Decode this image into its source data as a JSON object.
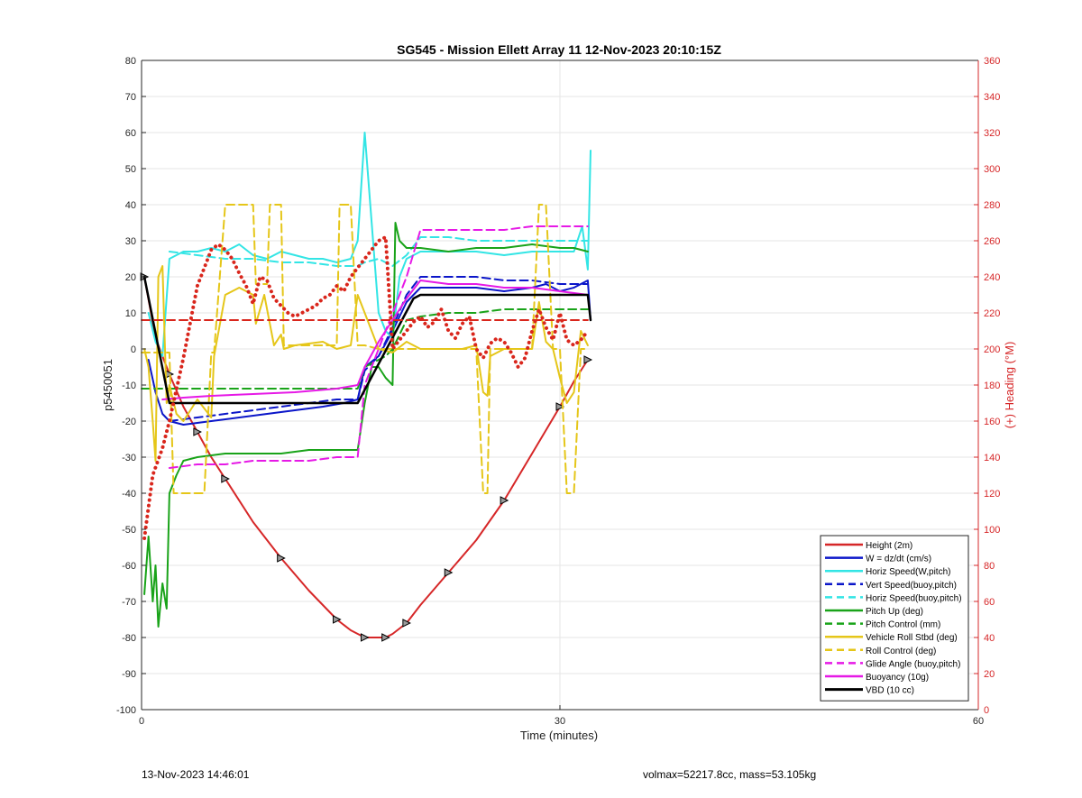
{
  "chart_data": {
    "type": "line",
    "title": "SG545 - Mission Ellett Array 11 12-Nov-2023 20:10:15Z",
    "xlabel": "Time (minutes)",
    "ylabel": "p5450051",
    "ylabel_right": "(+) Heading (°M)",
    "xlim": [
      0,
      60
    ],
    "ylim": [
      -100,
      80
    ],
    "ylim_right": [
      0,
      360
    ],
    "x_ticks": [
      "0",
      "30",
      "60"
    ],
    "y_ticks": [
      "80",
      "70",
      "60",
      "50",
      "40",
      "30",
      "20",
      "10",
      "0",
      "-10",
      "-20",
      "-30",
      "-40",
      "-50",
      "-60",
      "-70",
      "-80",
      "-90",
      "-100"
    ],
    "y_ticks_right": [
      "360",
      "340",
      "320",
      "300",
      "280",
      "260",
      "240",
      "220",
      "200",
      "180",
      "160",
      "140",
      "120",
      "100",
      "80",
      "60",
      "40",
      "20",
      "0"
    ],
    "grid": true,
    "legend_position": "bottom-right",
    "colors": {
      "height": "#d62728",
      "w": "#0b16c9",
      "horiz": "#33e5e5",
      "pitch": "#19a319",
      "roll": "#e5c619",
      "glide": "#e619e6",
      "buoy": "#e619e6",
      "vbd": "#000000",
      "heading": "#d9261c",
      "axis_right": "#d62728"
    },
    "series": [
      {
        "name": "Height (2m)",
        "style": "solid",
        "color": "#d62728",
        "width": 2,
        "marker": "triangle",
        "x": [
          0.2,
          1,
          2,
          3,
          4,
          5,
          6,
          8,
          10,
          12,
          14,
          15,
          16,
          17,
          17.5,
          18,
          19,
          20,
          22,
          24,
          26,
          28,
          30,
          31,
          32
        ],
        "y": [
          20,
          3,
          -7,
          -16,
          -23,
          -30,
          -36,
          -48,
          -58,
          -67,
          -75,
          -78,
          -80,
          -80,
          -80,
          -79,
          -76,
          -71,
          -62,
          -53,
          -42,
          -29,
          -16,
          -9,
          -3
        ]
      },
      {
        "name": "W = dz/dt (cm/s)",
        "style": "solid",
        "color": "#0b16c9",
        "width": 2,
        "x": [
          0.5,
          1,
          1.5,
          2,
          3,
          5,
          7,
          9,
          11,
          13,
          14.5,
          15.5,
          16,
          17,
          18,
          19,
          20,
          22,
          24,
          26,
          28,
          29,
          30,
          31,
          32,
          32.2
        ],
        "y": [
          -3,
          -12,
          -18,
          -20,
          -21,
          -20,
          -19,
          -18,
          -17,
          -16,
          -15,
          -14,
          -5,
          -2,
          5,
          13,
          17,
          17,
          17,
          16,
          17,
          18,
          16,
          17,
          19,
          8
        ]
      },
      {
        "name": "Horiz Speed(W,pitch)",
        "style": "solid",
        "color": "#33e5e5",
        "width": 2,
        "x": [
          0.5,
          1,
          1.5,
          2,
          3,
          4,
          5,
          6,
          7,
          8,
          9,
          10,
          11,
          12,
          13,
          14,
          15,
          15.5,
          16,
          16.5,
          17,
          17.5,
          18,
          18.5,
          19,
          20,
          22,
          24,
          26,
          28,
          30,
          31,
          31.6,
          32,
          32.2
        ],
        "y": [
          10,
          2,
          -2,
          25,
          27,
          27,
          28,
          27,
          29,
          26,
          25,
          27,
          26,
          25,
          25,
          24,
          25,
          30,
          60,
          35,
          10,
          5,
          3,
          20,
          25,
          27,
          27,
          27,
          26,
          27,
          27,
          27,
          34,
          22,
          55
        ]
      },
      {
        "name": "Vert Speed(buoy,pitch)",
        "style": "dashed",
        "color": "#0b16c9",
        "width": 2,
        "x": [
          2,
          4,
          6,
          8,
          10,
          12,
          14,
          15.5,
          16,
          17,
          18,
          19,
          20,
          22,
          24,
          26,
          28,
          30,
          32
        ],
        "y": [
          -20,
          -19,
          -18,
          -17,
          -16,
          -15,
          -14,
          -14,
          -6,
          -2,
          6,
          15,
          20,
          20,
          20,
          19,
          19,
          18,
          18
        ]
      },
      {
        "name": "Horiz Speed(buoy,pitch)",
        "style": "dashed",
        "color": "#33e5e5",
        "width": 2,
        "x": [
          2,
          4,
          6,
          8,
          10,
          12,
          14,
          15.5,
          16,
          17,
          18,
          19,
          20,
          22,
          24,
          26,
          28,
          30,
          32
        ],
        "y": [
          27,
          26,
          25,
          25,
          24,
          24,
          23,
          23,
          24,
          25,
          23,
          26,
          31,
          31,
          30,
          30,
          30,
          30,
          30
        ]
      },
      {
        "name": "Pitch Up (deg)",
        "style": "solid",
        "color": "#19a319",
        "width": 2,
        "x": [
          0.2,
          0.5,
          0.8,
          1,
          1.2,
          1.5,
          1.8,
          2,
          2.5,
          3,
          4,
          6,
          8,
          10,
          12,
          14,
          15.5,
          16,
          16.5,
          17,
          17.5,
          18,
          18.2,
          18.5,
          19,
          20,
          22,
          24,
          26,
          28,
          30,
          31,
          32
        ],
        "y": [
          -68,
          -52,
          -70,
          -60,
          -77,
          -65,
          -72,
          -40,
          -35,
          -31,
          -30,
          -29,
          -29,
          -29,
          -28,
          -28,
          -28,
          -15,
          -5,
          -5,
          -8,
          -10,
          35,
          30,
          28,
          28,
          27,
          28,
          28,
          29,
          28,
          28,
          27
        ]
      },
      {
        "name": "Pitch Control (mm)",
        "style": "dashed",
        "color": "#19a319",
        "width": 2,
        "x": [
          0,
          15.5,
          16,
          17,
          17.5,
          18,
          19,
          20,
          22,
          24,
          26,
          28,
          30,
          32
        ],
        "y": [
          -11,
          -11,
          -5,
          -3,
          -2,
          0,
          8,
          9,
          10,
          10,
          11,
          11,
          11,
          11
        ]
      },
      {
        "name": "Vehicle Roll Stbd (deg)",
        "style": "solid",
        "color": "#e5c619",
        "width": 2,
        "x": [
          0.2,
          0.5,
          0.8,
          1,
          1.2,
          1.5,
          1.8,
          2,
          2.5,
          3,
          4,
          5,
          5.2,
          6,
          7,
          8,
          8.2,
          8.8,
          9.5,
          10,
          10.2,
          11,
          13,
          14,
          15,
          15.5,
          16,
          17,
          18,
          19,
          20,
          22,
          23,
          24,
          24.5,
          24.8,
          25,
          26,
          27,
          28,
          28.5,
          29,
          29.5,
          30,
          30.5,
          31,
          31.5,
          32
        ],
        "y": [
          0,
          -5,
          -20,
          -31,
          20,
          23,
          -15,
          -10,
          -18,
          -20,
          -14,
          -19,
          -2,
          15,
          17,
          15,
          7,
          15,
          1,
          4,
          0,
          1,
          2,
          0,
          1,
          15,
          10,
          0,
          -1,
          2,
          0,
          0,
          0,
          1,
          -12,
          -13,
          -2,
          0,
          0,
          0,
          13,
          2,
          0,
          -8,
          -15,
          -12,
          5,
          1
        ]
      },
      {
        "name": "Roll Control (deg)",
        "style": "dashed",
        "color": "#e5c619",
        "width": 2,
        "x": [
          0,
          2,
          2.3,
          4,
          4.5,
          5,
          5.2,
          6,
          7,
          8,
          8.2,
          9,
          9.2,
          10,
          10.2,
          13,
          14,
          14.2,
          15,
          15.5,
          16,
          17,
          18,
          19,
          20,
          22,
          23,
          24,
          24.5,
          24.8,
          25,
          26,
          27,
          28,
          28.5,
          29,
          29.5,
          30,
          30.5,
          31,
          31.5,
          32
        ],
        "y": [
          -1,
          -1,
          -40,
          -40,
          -40,
          -1,
          -1,
          40,
          40,
          40,
          18,
          18,
          40,
          40,
          1,
          1,
          1,
          40,
          40,
          1,
          1,
          0,
          0,
          0,
          0,
          0,
          0,
          0,
          -40,
          -40,
          0,
          0,
          0,
          0,
          40,
          40,
          0,
          0,
          -40,
          -40,
          0,
          0
        ]
      },
      {
        "name": "Glide Angle (buoy,pitch)",
        "style": "dashed",
        "color": "#e619e6",
        "width": 2,
        "x": [
          2,
          4,
          6,
          8,
          10,
          12,
          14,
          15.5,
          16,
          17,
          18,
          19,
          20,
          22,
          24,
          26,
          28,
          30,
          31,
          32
        ],
        "y": [
          -33,
          -32,
          -32,
          -31,
          -31,
          -31,
          -30,
          -30,
          -10,
          0,
          10,
          20,
          33,
          33,
          33,
          33,
          34,
          34,
          34,
          34
        ]
      },
      {
        "name": "Buoyancy (10g)",
        "style": "solid",
        "color": "#e619e6",
        "width": 2,
        "x": [
          1.5,
          3,
          5,
          8,
          11,
          14,
          15.5,
          16,
          17,
          18,
          19,
          20,
          22,
          24,
          26,
          28,
          30,
          32
        ],
        "y": [
          -14,
          -13.5,
          -13,
          -12.5,
          -12,
          -11,
          -10,
          -5,
          2,
          8,
          14,
          19,
          18,
          18,
          17,
          17,
          16,
          15
        ]
      },
      {
        "name": "VBD (10 cc)",
        "style": "solid",
        "color": "#000000",
        "width": 2.5,
        "x": [
          0.2,
          2,
          15.5,
          19.5,
          20,
          32,
          32.2
        ],
        "y": [
          20,
          -15,
          -15,
          14,
          15,
          15,
          8
        ]
      },
      {
        "name": "",
        "style": "dashed",
        "color": "#d9261c",
        "width": 2,
        "x": [
          0,
          32
        ],
        "y": [
          8,
          8
        ]
      },
      {
        "name": "",
        "style": "dotted",
        "color": "#d9261c",
        "width": 2.5,
        "axis": "right",
        "x": [
          0.2,
          0.8,
          1.5,
          2,
          3,
          4,
          5,
          5.5,
          6,
          6.5,
          7,
          7.5,
          8,
          8.5,
          9,
          9.5,
          10,
          10.5,
          11,
          11.5,
          12,
          12.5,
          13,
          13.5,
          14,
          14.5,
          15,
          15.5,
          16,
          16.5,
          17,
          17.5,
          18,
          18.5,
          19,
          19.5,
          20,
          20.5,
          21,
          21.5,
          22,
          22.5,
          23,
          23.5,
          24,
          24.5,
          25,
          25.5,
          26,
          26.5,
          27,
          27.5,
          28,
          28.5,
          29,
          29.5,
          30,
          30.5,
          31,
          31.5,
          32
        ],
        "y": [
          95,
          130,
          145,
          160,
          195,
          235,
          255,
          258,
          255,
          250,
          242,
          235,
          225,
          240,
          238,
          228,
          224,
          220,
          218,
          220,
          222,
          224,
          228,
          230,
          235,
          232,
          240,
          245,
          250,
          255,
          260,
          262,
          200,
          205,
          210,
          215,
          218,
          212,
          215,
          222,
          210,
          206,
          214,
          218,
          200,
          195,
          203,
          206,
          204,
          198,
          190,
          195,
          210,
          222,
          212,
          205,
          220,
          205,
          202,
          205,
          210
        ]
      }
    ]
  },
  "footer": {
    "left": "13-Nov-2023 14:46:01",
    "right": "volmax=52217.8cc, mass=53.105kg"
  }
}
